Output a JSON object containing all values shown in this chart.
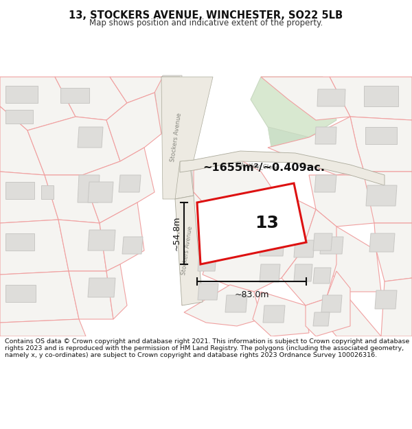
{
  "title": "13, STOCKERS AVENUE, WINCHESTER, SO22 5LB",
  "subtitle": "Map shows position and indicative extent of the property.",
  "footer": "Contains OS data © Crown copyright and database right 2021. This information is subject to Crown copyright and database rights 2023 and is reproduced with the permission of HM Land Registry. The polygons (including the associated geometry, namely x, y co-ordinates) are subject to Crown copyright and database rights 2023 Ordnance Survey 100026316.",
  "area_label": "~1655m²/~0.409ac.",
  "property_number": "13",
  "dim_height": "~54.8m",
  "dim_width": "~83.0m",
  "bg_color": "#ffffff",
  "map_bg": "#f7f6f3",
  "parcel_fill": "#f5f4f1",
  "parcel_edge": "#f0a0a0",
  "building_fill": "#deddda",
  "building_edge": "#c8c7c4",
  "road_fill": "#f0eeea",
  "road_stroke": "#c8c7c2",
  "green_fill": "#d8e8d0",
  "green_edge": "#c8d8c0",
  "red_color": "#dd1111",
  "dim_color": "#111111",
  "label_color": "#111111",
  "street_color": "#888880",
  "westley_color": "#888880"
}
